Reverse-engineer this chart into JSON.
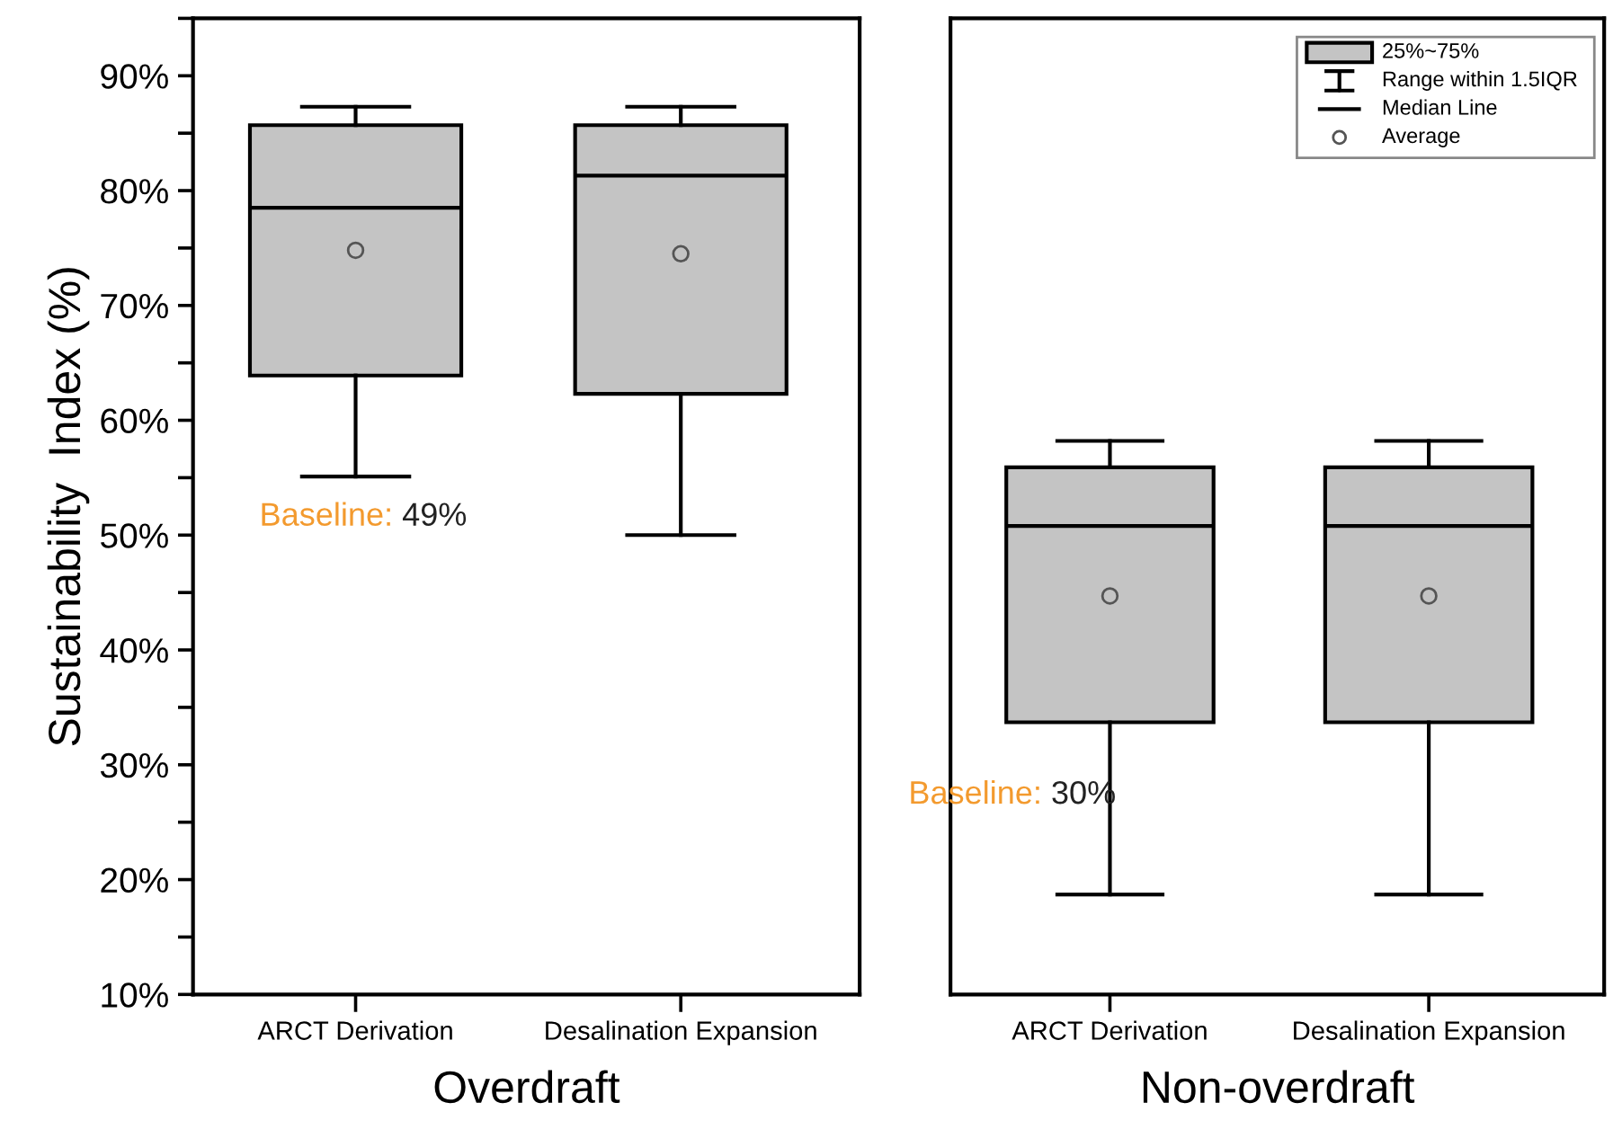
{
  "chart_data": [
    {
      "type": "box",
      "xlabel": "Overdraft",
      "ylabel": "Sustainability  Index (%)",
      "categories": [
        "ARCT Derivation",
        "Desalination Expansion"
      ],
      "color": "#c4c4c4",
      "boxes": [
        {
          "low": 55.1,
          "q1": 63.9,
          "median": 78.5,
          "q3": 85.7,
          "high": 87.3,
          "mean": 74.8
        },
        {
          "low": 50.0,
          "q1": 62.3,
          "median": 81.3,
          "q3": 85.7,
          "high": 87.3,
          "mean": 74.5
        }
      ],
      "ylim": [
        10,
        95
      ],
      "yticks": [
        {
          "value": 10,
          "label": "10%"
        },
        {
          "value": 20,
          "label": "20%"
        },
        {
          "value": 30,
          "label": "30%"
        },
        {
          "value": 40,
          "label": "40%"
        },
        {
          "value": 50,
          "label": "50%"
        },
        {
          "value": 60,
          "label": "60%"
        },
        {
          "value": 70,
          "label": "70%"
        },
        {
          "value": 80,
          "label": "80%"
        },
        {
          "value": 90,
          "label": "90%"
        }
      ],
      "annotations": [
        "Baseline: 49%"
      ]
    },
    {
      "type": "box",
      "xlabel": "Non-overdraft",
      "categories": [
        "ARCT Derivation",
        "Desalination Expansion"
      ],
      "color": "#c4c4c4",
      "boxes": [
        {
          "low": 18.7,
          "q1": 33.7,
          "median": 50.8,
          "q3": 55.9,
          "high": 58.2,
          "mean": 44.7
        },
        {
          "low": 18.7,
          "q1": 33.7,
          "median": 50.8,
          "q3": 55.9,
          "high": 58.2,
          "mean": 44.7
        }
      ],
      "ylim": [
        10,
        95
      ],
      "tick_labels": "x",
      "annotations": [
        "Baseline: 30%",
        "25%~75%",
        "Range within 1.5IQR",
        "Median Line",
        "Average"
      ]
    }
  ]
}
